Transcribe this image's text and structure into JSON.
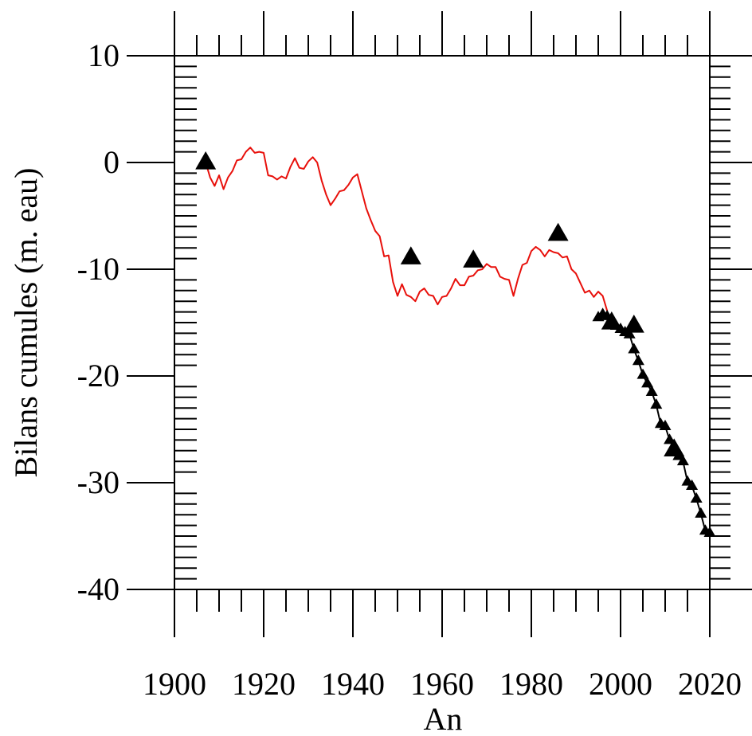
{
  "chart_data": {
    "type": "line",
    "title": "",
    "xlabel": "An",
    "ylabel": "Bilans cumules (m. eau)",
    "xlim": [
      1900,
      2020
    ],
    "ylim": [
      -40,
      10
    ],
    "x_ticks": [
      1900,
      1920,
      1940,
      1960,
      1980,
      2000,
      2020
    ],
    "y_ticks": [
      10,
      0,
      -10,
      -20,
      -30,
      -40
    ],
    "x_tick_labels": [
      "1900",
      "1920",
      "1940",
      "1960",
      "1980",
      "2000",
      "2020"
    ],
    "y_tick_labels": [
      "10",
      "0",
      "-10",
      "-20",
      "-30",
      "-40"
    ],
    "grid": false,
    "series": [
      {
        "kind": "line",
        "color": "#e8100b",
        "x": [
          1907,
          1908,
          1909,
          1910,
          1911,
          1912,
          1913,
          1914,
          1915,
          1916,
          1917,
          1918,
          1919,
          1920,
          1921,
          1922,
          1923,
          1924,
          1925,
          1926,
          1927,
          1928,
          1929,
          1930,
          1931,
          1932,
          1933,
          1934,
          1935,
          1936,
          1937,
          1938,
          1939,
          1940,
          1941,
          1942,
          1943,
          1944,
          1945,
          1946,
          1947,
          1948,
          1949,
          1950,
          1951,
          1952,
          1953,
          1954,
          1955,
          1956,
          1957,
          1958,
          1959,
          1960,
          1961,
          1962,
          1963,
          1964,
          1965,
          1966,
          1967,
          1968,
          1969,
          1970,
          1971,
          1972,
          1973,
          1974,
          1975,
          1976,
          1977,
          1978,
          1979,
          1980,
          1981,
          1982,
          1983,
          1984,
          1985,
          1986,
          1987,
          1988,
          1989,
          1990,
          1991,
          1992,
          1993,
          1994,
          1995,
          1996,
          1997
        ],
        "y": [
          0.0,
          -1.4,
          -2.2,
          -1.2,
          -2.5,
          -1.4,
          -0.8,
          0.2,
          0.3,
          1.0,
          1.4,
          0.9,
          1.0,
          0.9,
          -1.2,
          -1.3,
          -1.6,
          -1.3,
          -1.5,
          -0.4,
          0.4,
          -0.5,
          -0.6,
          0.1,
          0.5,
          0.0,
          -1.7,
          -3.0,
          -4.0,
          -3.4,
          -2.7,
          -2.6,
          -2.1,
          -1.4,
          -1.1,
          -2.7,
          -4.3,
          -5.4,
          -6.4,
          -6.9,
          -8.8,
          -8.7,
          -11.2,
          -12.5,
          -11.4,
          -12.4,
          -12.6,
          -13.0,
          -12.1,
          -11.8,
          -12.4,
          -12.5,
          -13.3,
          -12.6,
          -12.5,
          -11.8,
          -10.9,
          -11.5,
          -11.5,
          -10.7,
          -10.6,
          -10.1,
          -10.0,
          -9.5,
          -9.8,
          -9.8,
          -10.7,
          -10.9,
          -11.0,
          -12.5,
          -10.9,
          -9.6,
          -9.4,
          -8.3,
          -7.9,
          -8.2,
          -8.8,
          -8.2,
          -8.4,
          -8.5,
          -8.9,
          -8.8,
          -10.0,
          -10.4,
          -11.3,
          -12.2,
          -12.0,
          -12.6,
          -12.1,
          -12.5,
          -13.9
        ]
      },
      {
        "kind": "line+markers",
        "color": "#000000",
        "x": [
          1995,
          1996,
          1997,
          1998,
          1999,
          2000,
          2001,
          2002,
          2003,
          2004,
          2005,
          2006,
          2007,
          2008,
          2009,
          2010,
          2011,
          2012,
          2013,
          2014,
          2015,
          2016,
          2017,
          2018,
          2019,
          2020
        ],
        "y": [
          -14.5,
          -14.2,
          -14.4,
          -15.0,
          -15.3,
          -15.6,
          -15.9,
          -16.1,
          -17.5,
          -18.6,
          -19.9,
          -20.7,
          -21.5,
          -22.7,
          -24.5,
          -24.7,
          -26.0,
          -26.9,
          -27.5,
          -28.0,
          -29.9,
          -30.3,
          -31.5,
          -32.9,
          -34.5,
          -34.7
        ]
      },
      {
        "kind": "markers-large",
        "color": "#000000",
        "x": [
          1907,
          1953,
          1967,
          1986,
          1998,
          2003,
          2012
        ],
        "y": [
          0.0,
          -8.9,
          -9.2,
          -6.7,
          -15.0,
          -15.3,
          -26.9
        ]
      }
    ]
  }
}
